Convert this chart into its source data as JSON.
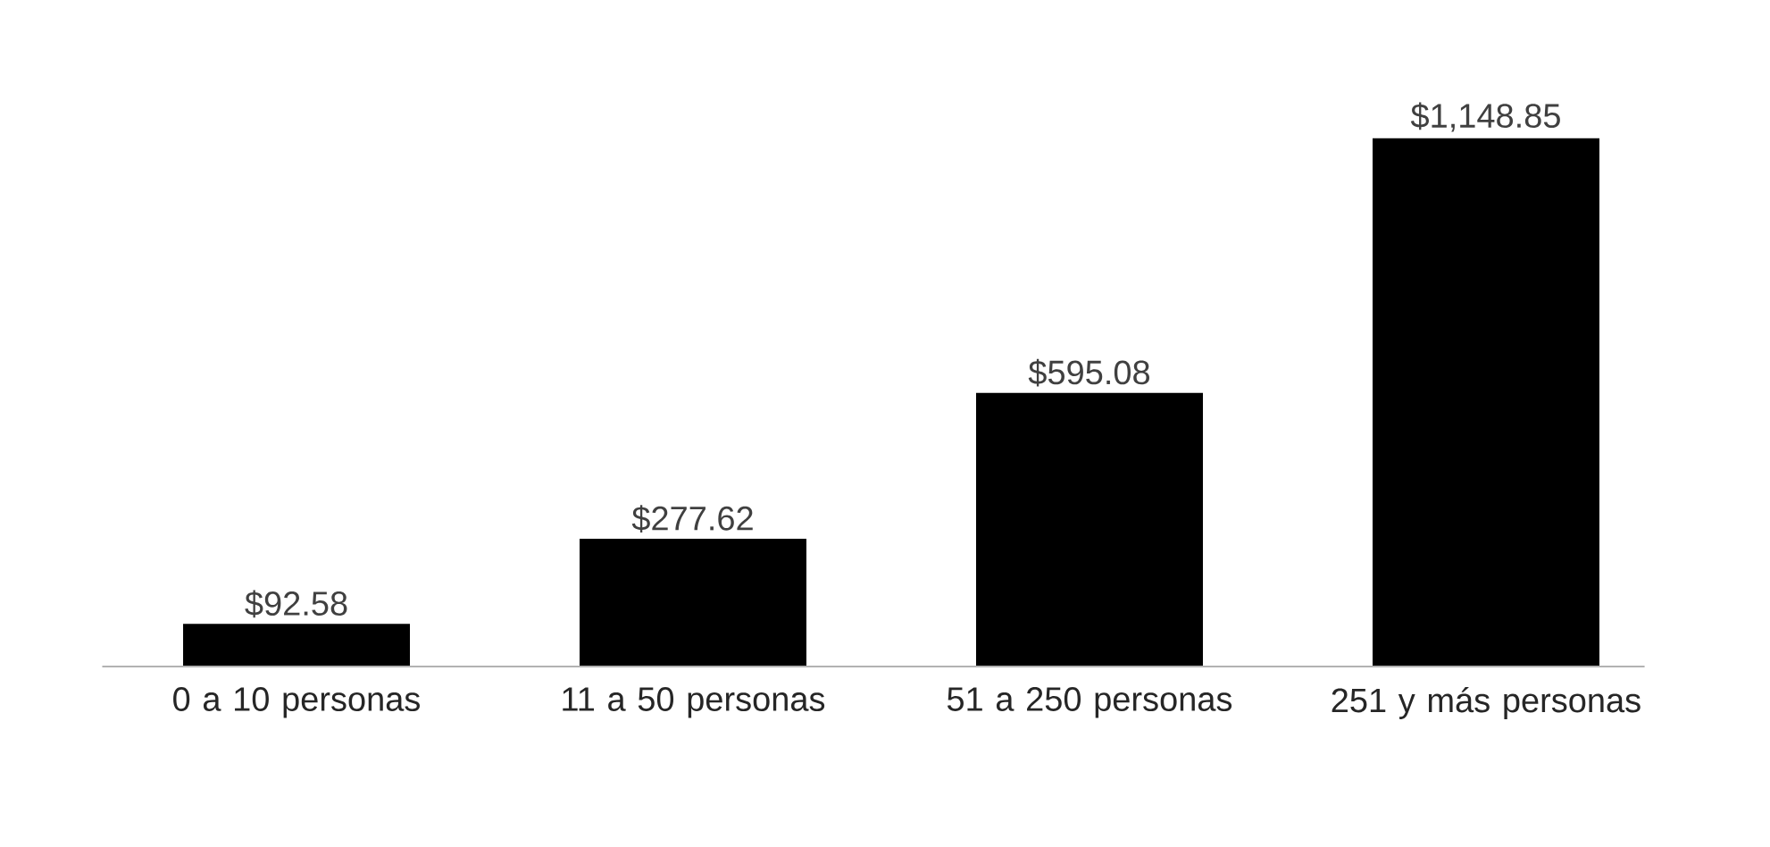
{
  "chart_data": {
    "type": "bar",
    "categories": [
      "0 a 10 personas",
      "11 a 50 personas",
      "51 a 250 personas",
      "251 y más personas"
    ],
    "values": [
      92.58,
      277.62,
      595.08,
      1148.85
    ],
    "color": "#000000",
    "value_labels": [
      "$92.58",
      "$277.62",
      "$595.08",
      "$1,148.85"
    ]
  }
}
